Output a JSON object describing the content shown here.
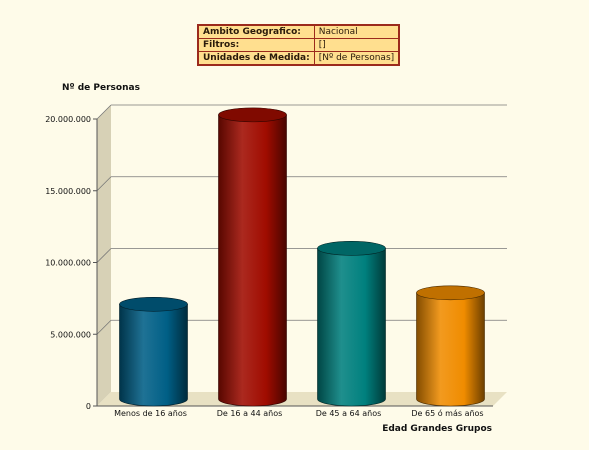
{
  "info": {
    "rows": [
      {
        "label": "Ambito Geografico:",
        "value": "Nacional"
      },
      {
        "label": "Filtros:",
        "value": "[]"
      },
      {
        "label": "Unidades de Medida:",
        "value": "[Nº de Personas]"
      }
    ]
  },
  "chart_data": {
    "type": "bar",
    "title": "",
    "ylabel": "Nº de Personas",
    "xlabel": "Edad Grandes Grupos",
    "categories": [
      "Menos de 16 años",
      "De 16 a 44 años",
      "De 45 a 64 años",
      "De 65 ó más años"
    ],
    "values": [
      6600000,
      19800000,
      10500000,
      7400000
    ],
    "colors": [
      "#005f86",
      "#a00c00",
      "#00807e",
      "#f08c00"
    ],
    "ylim": [
      0,
      20000000
    ],
    "yticks": [
      0,
      5000000,
      10000000,
      15000000,
      20000000
    ],
    "ytick_labels": [
      "0",
      "5.000.000",
      "10.000.000",
      "15.000.000",
      "20.000.000"
    ],
    "grid": true,
    "legend": "none"
  }
}
